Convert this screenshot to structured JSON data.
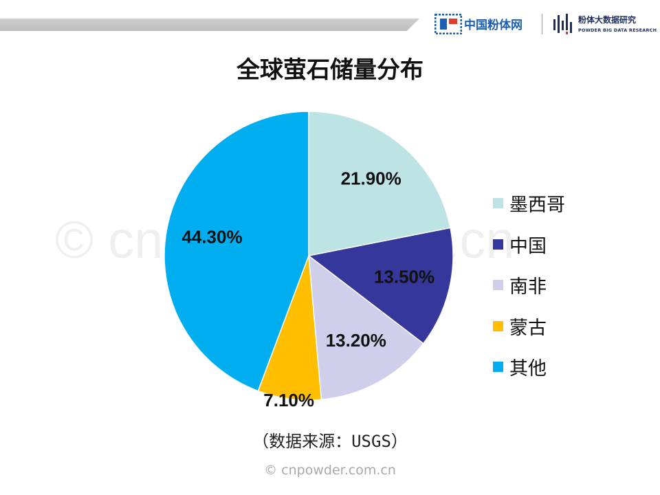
{
  "header": {
    "logo1_text": "中国粉体网",
    "logo2_text": "粉体大数据研究",
    "logo2_sub": "POWDER BIG DATA RESEARCH"
  },
  "watermark": "© cnpowder.com.cn",
  "chart_data": {
    "type": "pie",
    "title": "全球萤石储量分布",
    "labels": [
      "墨西哥",
      "中国",
      "南非",
      "蒙古",
      "其他"
    ],
    "values": [
      21.9,
      13.5,
      13.2,
      7.1,
      44.3
    ],
    "data_labels": [
      "21.90%",
      "13.50%",
      "13.20%",
      "7.10%",
      "44.30%"
    ],
    "colors": [
      "#bde3e4",
      "#35379a",
      "#cfcfec",
      "#ffbf00",
      "#00aeef"
    ],
    "legend_position": "right",
    "start_angle": "12 o'clock, clockwise"
  },
  "source": "（数据来源：USGS）",
  "footer": "© cnpowder.com.cn"
}
